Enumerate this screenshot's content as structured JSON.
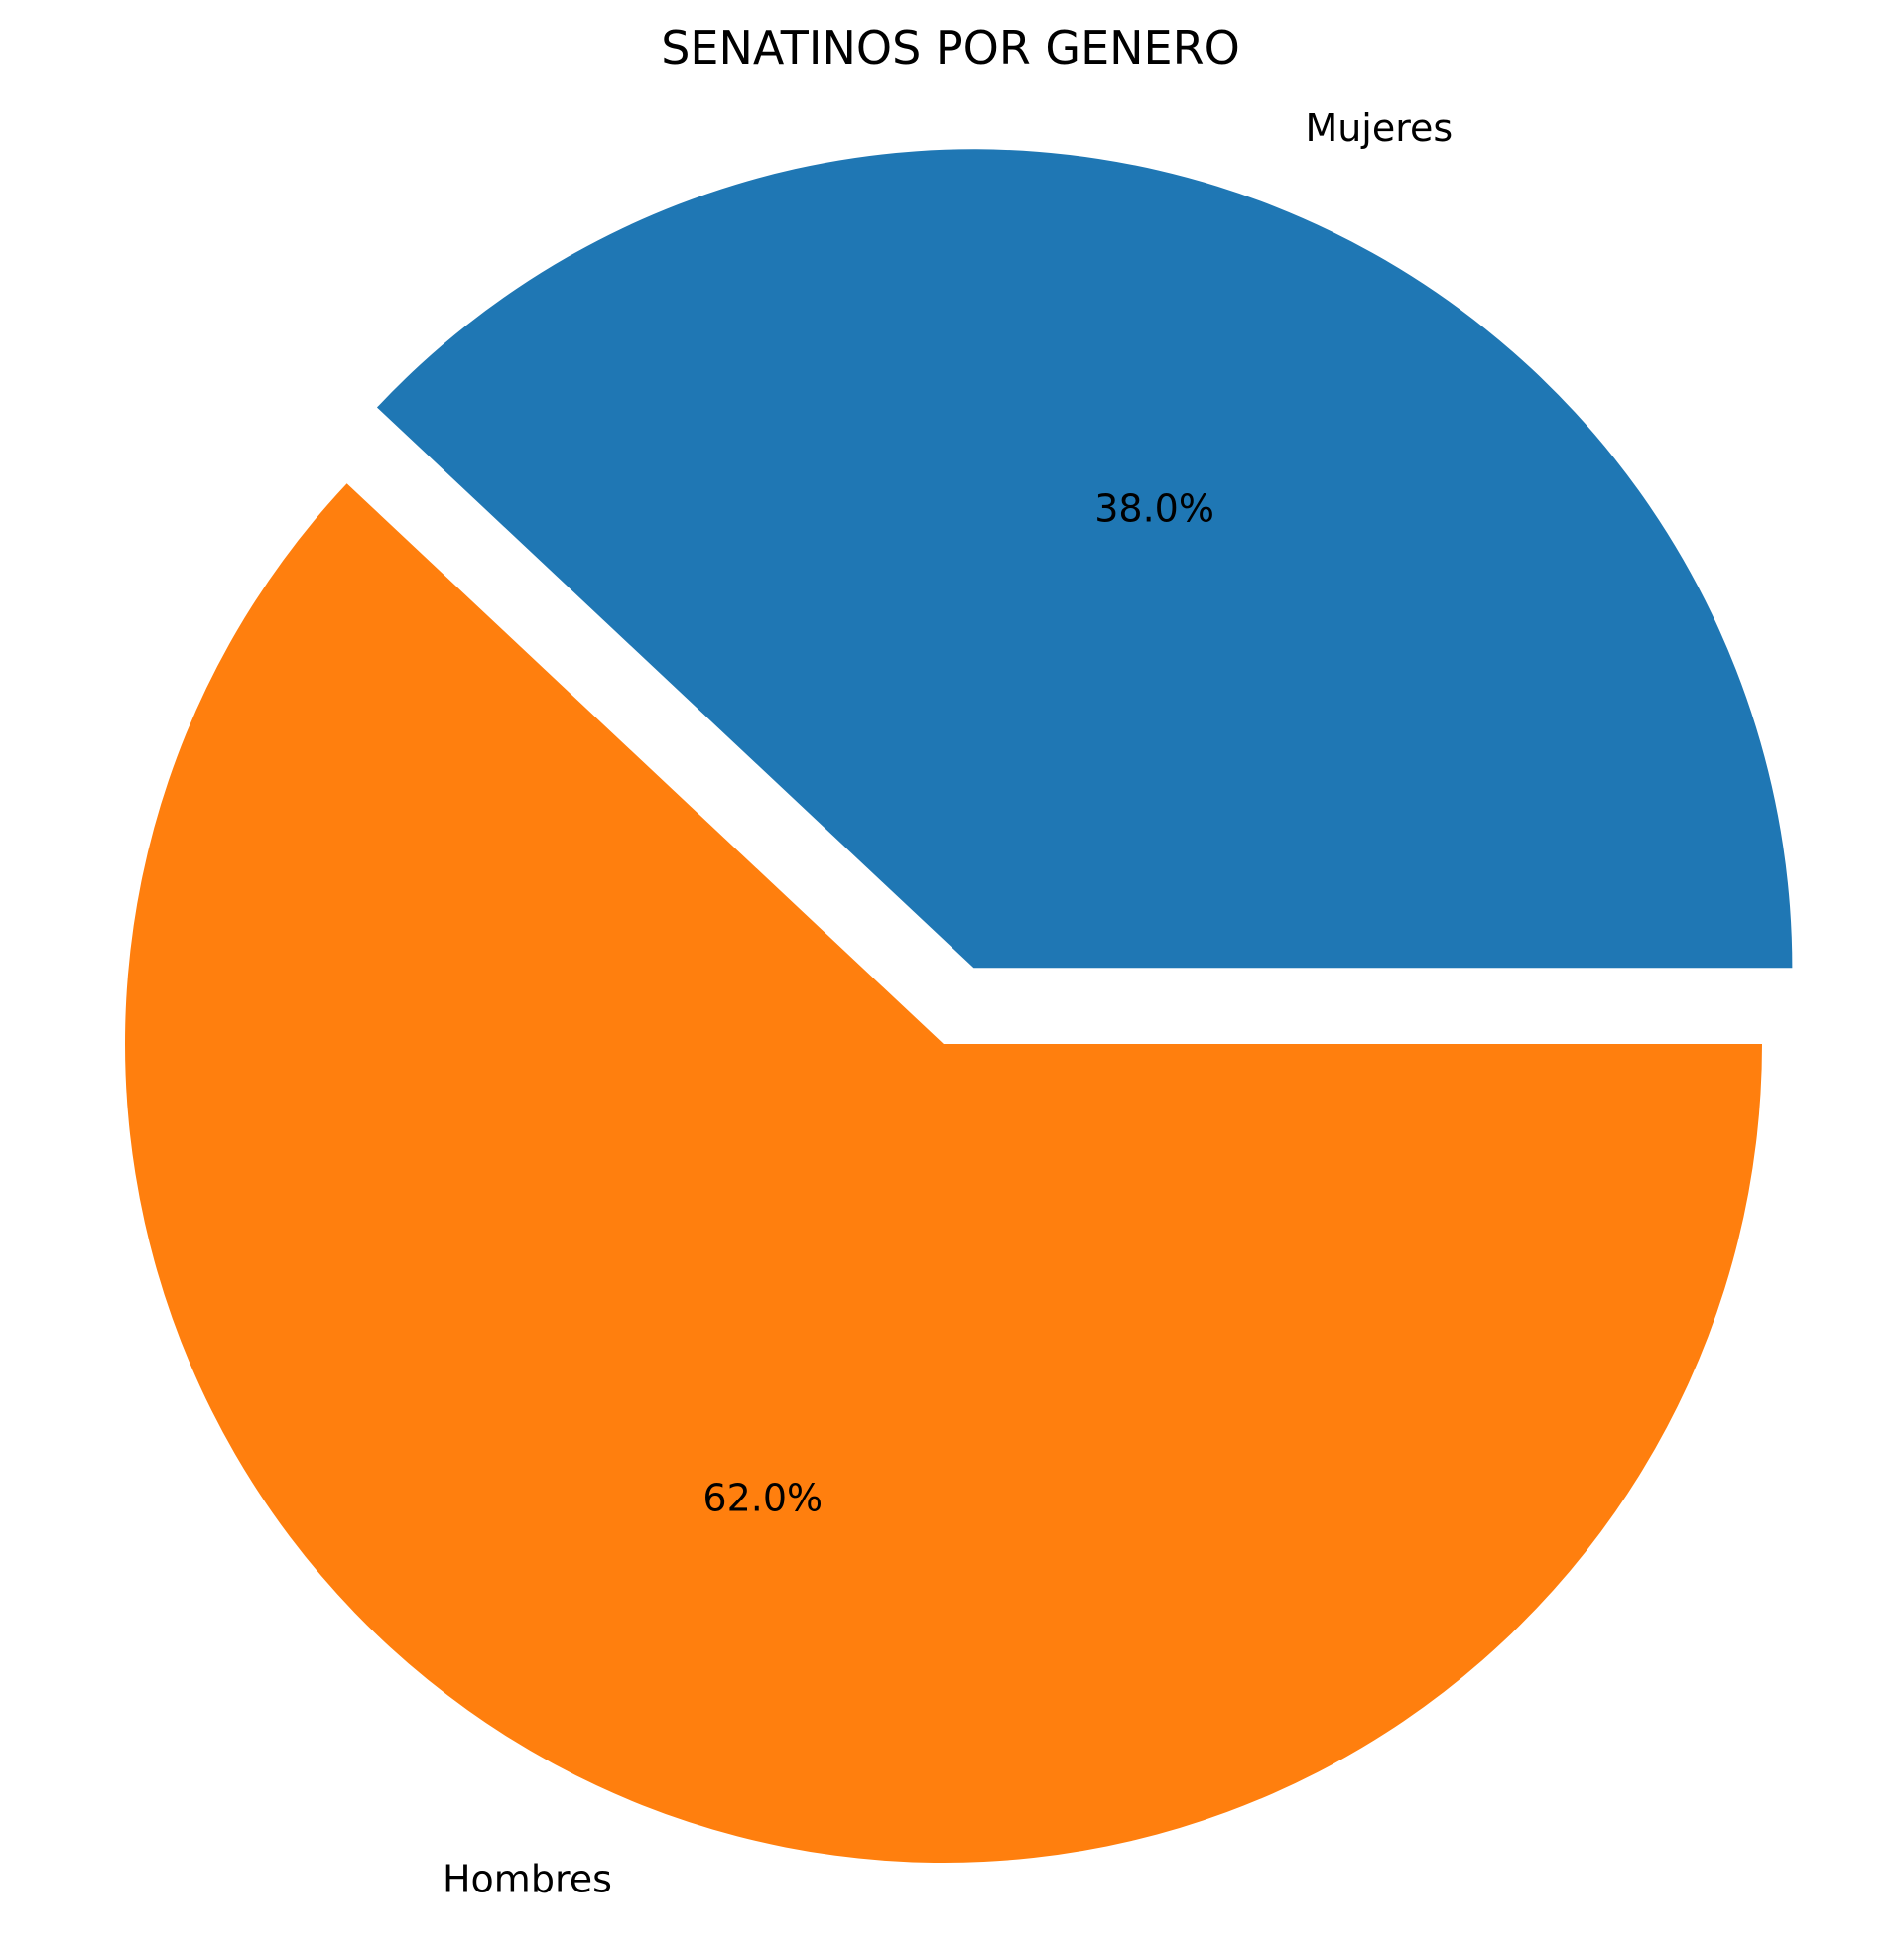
{
  "chart_data": {
    "type": "pie",
    "title": "SENATINOS POR GENERO",
    "categories": [
      "Mujeres",
      "Hombres"
    ],
    "values": [
      38.0,
      62.0
    ],
    "percent_labels": [
      "38.0%",
      "62.0%"
    ],
    "colors": [
      "#1f77b4",
      "#ff7f0e"
    ],
    "exploded": [
      "Mujeres"
    ],
    "start_angle_deg": 0,
    "direction": "counterclockwise",
    "legend": "none"
  }
}
